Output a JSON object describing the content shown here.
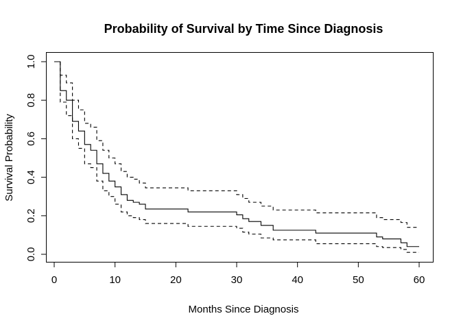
{
  "chart_data": {
    "type": "line",
    "title": "Probability of Survival by Time Since Diagnosis",
    "xlabel": "Months Since Diagnosis",
    "ylabel": "Survival Probability",
    "xlim": [
      0,
      60
    ],
    "ylim": [
      0,
      1
    ],
    "x_ticks": [
      0,
      10,
      20,
      30,
      40,
      50,
      60
    ],
    "y_ticks": [
      0.0,
      0.2,
      0.4,
      0.6,
      0.8,
      1.0
    ],
    "x_tick_labels": [
      "0",
      "10",
      "20",
      "30",
      "40",
      "50",
      "60"
    ],
    "y_tick_labels": [
      "0.0",
      "0.2",
      "0.4",
      "0.6",
      "0.8",
      "1.0"
    ],
    "grid": false,
    "step": true,
    "series": [
      {
        "style": "solid",
        "x": [
          0,
          1,
          2,
          3,
          4,
          5,
          6,
          7,
          8,
          9,
          10,
          11,
          12,
          13,
          14,
          15,
          22,
          30,
          31,
          32,
          34,
          36,
          43,
          53,
          54,
          57,
          58,
          60
        ],
        "y": [
          1.0,
          0.85,
          0.8,
          0.69,
          0.64,
          0.57,
          0.54,
          0.47,
          0.42,
          0.38,
          0.35,
          0.31,
          0.28,
          0.27,
          0.26,
          0.235,
          0.22,
          0.205,
          0.185,
          0.17,
          0.15,
          0.125,
          0.11,
          0.09,
          0.08,
          0.06,
          0.04,
          0.04
        ]
      },
      {
        "style": "dashed",
        "x": [
          0,
          1,
          2,
          3,
          4,
          5,
          6,
          7,
          8,
          9,
          10,
          11,
          12,
          13,
          14,
          15,
          22,
          30,
          31,
          32,
          34,
          36,
          43,
          53,
          54,
          57,
          58,
          60
        ],
        "y": [
          1.0,
          0.93,
          0.89,
          0.8,
          0.75,
          0.68,
          0.66,
          0.59,
          0.54,
          0.5,
          0.47,
          0.43,
          0.4,
          0.39,
          0.37,
          0.345,
          0.33,
          0.31,
          0.29,
          0.27,
          0.25,
          0.23,
          0.215,
          0.19,
          0.18,
          0.165,
          0.14,
          0.14
        ]
      },
      {
        "style": "dashed",
        "x": [
          0,
          1,
          2,
          3,
          4,
          5,
          6,
          7,
          8,
          9,
          10,
          11,
          12,
          13,
          14,
          15,
          22,
          30,
          31,
          32,
          34,
          36,
          43,
          53,
          54,
          57,
          58,
          60
        ],
        "y": [
          1.0,
          0.79,
          0.72,
          0.6,
          0.55,
          0.47,
          0.45,
          0.38,
          0.33,
          0.3,
          0.26,
          0.22,
          0.2,
          0.19,
          0.18,
          0.16,
          0.145,
          0.135,
          0.115,
          0.105,
          0.085,
          0.075,
          0.055,
          0.04,
          0.035,
          0.025,
          0.01,
          0.01
        ]
      }
    ]
  }
}
